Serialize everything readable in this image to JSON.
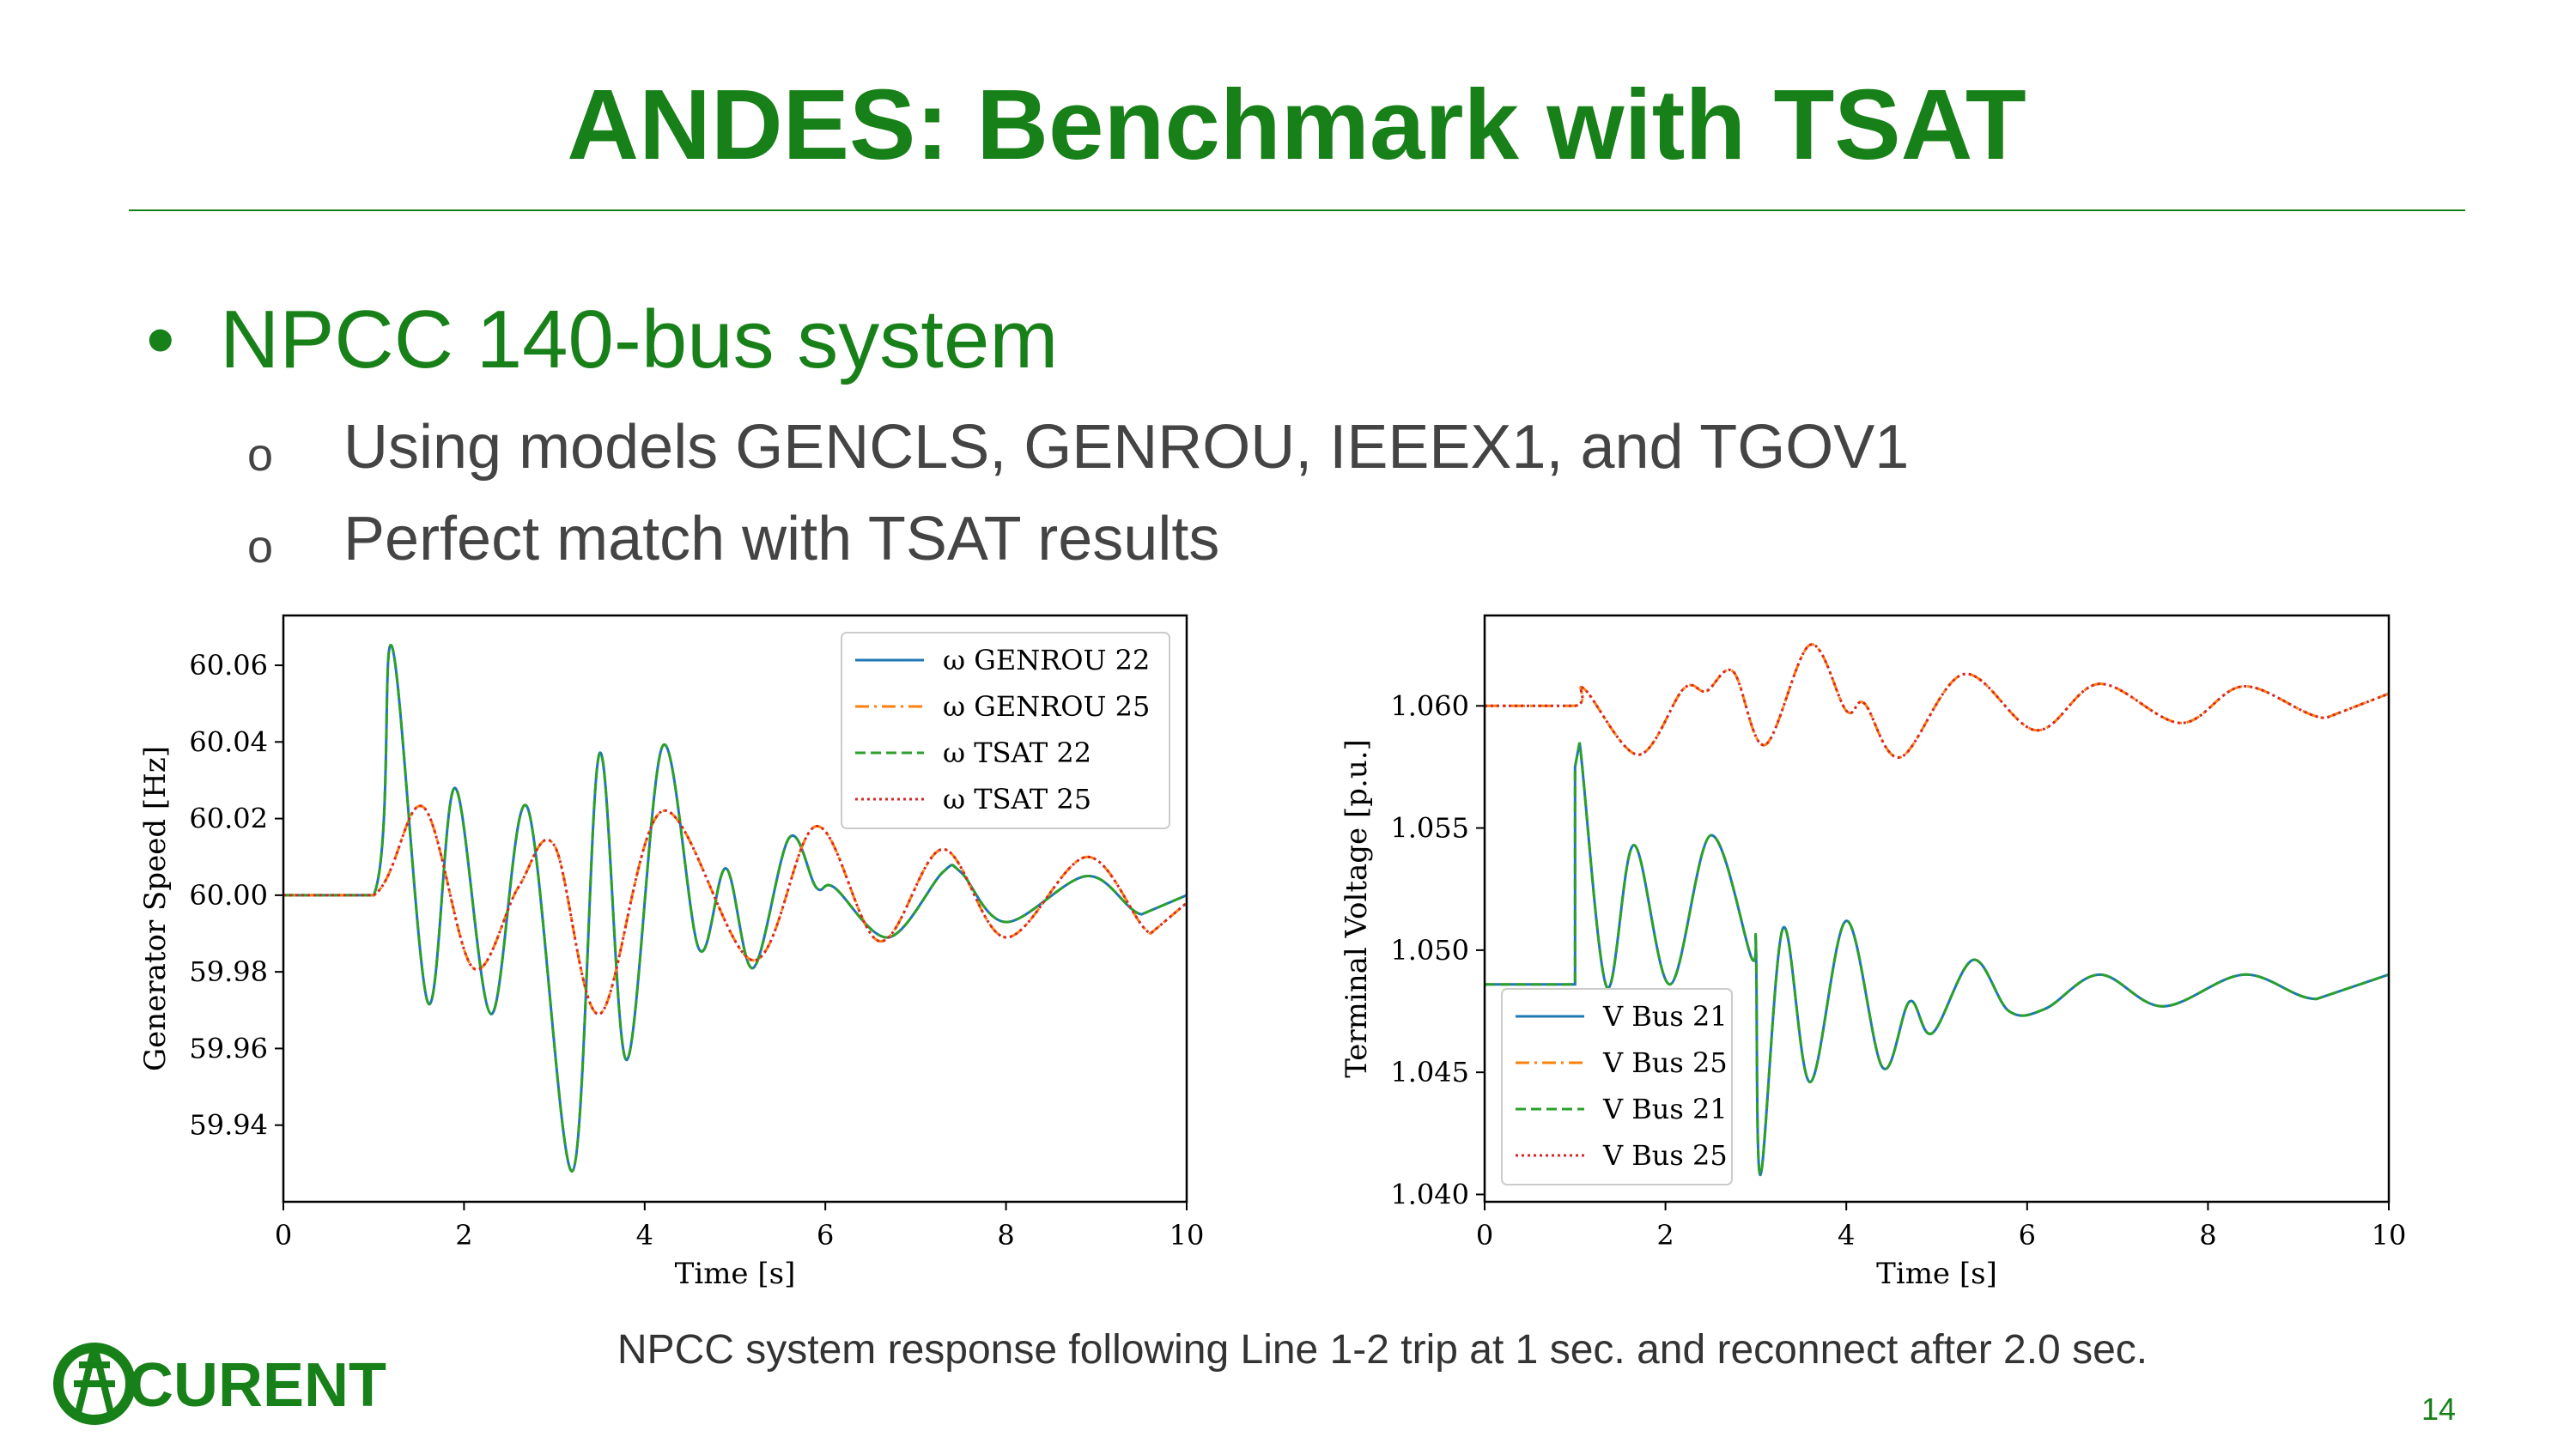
{
  "slide": {
    "title": "ANDES: Benchmark with TSAT",
    "bullet": "NPCC 140-bus system",
    "sub_bullets": [
      "Using models GENCLS, GENROU, IEEEX1, and TGOV1",
      "Perfect match with TSAT results"
    ]
  },
  "chart_data": [
    {
      "type": "line",
      "xlabel": "Time [s]",
      "ylabel": "Generator Speed [Hz]",
      "xlim": [
        0,
        10
      ],
      "xticks": [
        0,
        2,
        4,
        6,
        8,
        10
      ],
      "ylim": [
        59.92,
        60.073
      ],
      "yticks": [
        59.94,
        59.96,
        59.98,
        {
          "value": 60,
          "label": "60.00"
        },
        60.02,
        60.04,
        60.06
      ],
      "legend": "upper right",
      "series": [
        {
          "name": "ω GENROU 22",
          "color": "#1f77b4",
          "dash": "solid",
          "x": [
            0,
            1,
            1.2,
            1.6,
            1.9,
            2.3,
            2.7,
            3.2,
            3.5,
            3.8,
            4.2,
            4.6,
            4.9,
            5.2,
            5.6,
            5.9,
            6.1,
            6.7,
            7.3,
            7.5,
            8.0,
            8.9,
            9.5,
            10
          ],
          "values": [
            60.0,
            60.0,
            60.065,
            59.972,
            60.028,
            59.969,
            60.023,
            59.928,
            60.037,
            59.957,
            60.039,
            59.986,
            60.007,
            59.981,
            60.015,
            60.002,
            60.002,
            59.989,
            60.006,
            60.006,
            59.993,
            60.005,
            59.995,
            60.0
          ]
        },
        {
          "name": "ω GENROU 25",
          "color": "#ff7f0e",
          "dash": "dashdot",
          "x": [
            0,
            1,
            1.55,
            2.1,
            2.6,
            3.0,
            3.5,
            4.2,
            5.2,
            5.9,
            6.6,
            7.3,
            8.0,
            8.9,
            9.6,
            10
          ],
          "values": [
            60.0,
            60.0,
            60.023,
            59.981,
            60.002,
            60.013,
            59.969,
            60.022,
            59.983,
            60.018,
            59.988,
            60.012,
            59.989,
            60.01,
            59.99,
            59.998
          ]
        },
        {
          "name": "ω TSAT 22",
          "color": "#2ca02c",
          "dash": "dashed",
          "x": [
            0,
            1,
            1.2,
            1.6,
            1.9,
            2.3,
            2.7,
            3.2,
            3.5,
            3.8,
            4.2,
            4.6,
            4.9,
            5.2,
            5.6,
            5.9,
            6.1,
            6.7,
            7.3,
            7.5,
            8.0,
            8.9,
            9.5,
            10
          ],
          "values": [
            60.0,
            60.0,
            60.065,
            59.972,
            60.028,
            59.969,
            60.023,
            59.928,
            60.037,
            59.957,
            60.039,
            59.986,
            60.007,
            59.981,
            60.015,
            60.002,
            60.002,
            59.989,
            60.006,
            60.006,
            59.993,
            60.005,
            59.995,
            60.0
          ]
        },
        {
          "name": "ω TSAT 25",
          "color": "#d62728",
          "dash": "dotted",
          "x": [
            0,
            1,
            1.55,
            2.1,
            2.6,
            3.0,
            3.5,
            4.2,
            5.2,
            5.9,
            6.6,
            7.3,
            8.0,
            8.9,
            9.6,
            10
          ],
          "values": [
            60.0,
            60.0,
            60.023,
            59.981,
            60.002,
            60.013,
            59.969,
            60.022,
            59.983,
            60.018,
            59.988,
            60.012,
            59.989,
            60.01,
            59.99,
            59.998
          ]
        }
      ]
    },
    {
      "type": "line",
      "xlabel": "Time [s]",
      "ylabel": "Terminal Voltage [p.u.]",
      "xlim": [
        0,
        10
      ],
      "xticks": [
        0,
        2,
        4,
        6,
        8,
        10
      ],
      "ylim": [
        1.0397,
        1.0637
      ],
      "yticks": [
        {
          "value": 1.04,
          "label": "1.040"
        },
        1.045,
        {
          "value": 1.05,
          "label": "1.050"
        },
        1.055,
        {
          "value": 1.06,
          "label": "1.060"
        }
      ],
      "legend": "lower left",
      "series": [
        {
          "name": "V Bus 21",
          "color": "#1f77b4",
          "dash": "solid",
          "x": [
            0,
            1,
            1.0,
            1.05,
            1.35,
            1.65,
            2.05,
            2.5,
            2.95,
            3.0,
            3.05,
            3.3,
            3.6,
            4.0,
            4.4,
            4.7,
            4.95,
            5.4,
            5.8,
            6.2,
            6.8,
            7.5,
            8.4,
            9.2,
            10
          ],
          "values": [
            1.0486,
            1.0486,
            1.0575,
            1.0585,
            1.0485,
            1.0543,
            1.0486,
            1.0547,
            1.0497,
            1.0502,
            1.0408,
            1.0509,
            1.0446,
            1.0512,
            1.0452,
            1.0479,
            1.0466,
            1.0496,
            1.0475,
            1.0476,
            1.049,
            1.0477,
            1.049,
            1.048,
            1.049
          ]
        },
        {
          "name": "V Bus 25",
          "color": "#ff7f0e",
          "dash": "dashdot",
          "x": [
            0,
            1,
            1.1,
            1.7,
            2.2,
            2.45,
            2.75,
            3.1,
            3.6,
            4.0,
            4.2,
            4.6,
            5.3,
            6.1,
            6.8,
            7.7,
            8.4,
            9.3,
            10
          ],
          "values": [
            1.06,
            1.06,
            1.0607,
            1.058,
            1.0607,
            1.0606,
            1.0614,
            1.0584,
            1.0625,
            1.0598,
            1.0601,
            1.0579,
            1.0613,
            1.059,
            1.0609,
            1.0593,
            1.0608,
            1.0595,
            1.0605
          ]
        },
        {
          "name": "V Bus 21",
          "color": "#2ca02c",
          "dash": "dashed",
          "x": [
            0,
            1,
            1.0,
            1.05,
            1.35,
            1.65,
            2.05,
            2.5,
            2.95,
            3.0,
            3.05,
            3.3,
            3.6,
            4.0,
            4.4,
            4.7,
            4.95,
            5.4,
            5.8,
            6.2,
            6.8,
            7.5,
            8.4,
            9.2,
            10
          ],
          "values": [
            1.0486,
            1.0486,
            1.0575,
            1.0585,
            1.0485,
            1.0543,
            1.0486,
            1.0547,
            1.0497,
            1.0502,
            1.0408,
            1.0509,
            1.0446,
            1.0512,
            1.0452,
            1.0479,
            1.0466,
            1.0496,
            1.0475,
            1.0476,
            1.049,
            1.0477,
            1.049,
            1.048,
            1.049
          ]
        },
        {
          "name": "V Bus 25",
          "color": "#d62728",
          "dash": "dotted",
          "x": [
            0,
            1,
            1.1,
            1.7,
            2.2,
            2.45,
            2.75,
            3.1,
            3.6,
            4.0,
            4.2,
            4.6,
            5.3,
            6.1,
            6.8,
            7.7,
            8.4,
            9.3,
            10
          ],
          "values": [
            1.06,
            1.06,
            1.0607,
            1.058,
            1.0607,
            1.0606,
            1.0614,
            1.0584,
            1.0625,
            1.0598,
            1.0601,
            1.0579,
            1.0613,
            1.059,
            1.0609,
            1.0593,
            1.0608,
            1.0595,
            1.0605
          ]
        }
      ]
    }
  ],
  "caption": "NPCC system response following Line 1-2 trip at 1 sec. and reconnect after 2.0 sec.",
  "logo": "CURENT",
  "page_number": 14
}
